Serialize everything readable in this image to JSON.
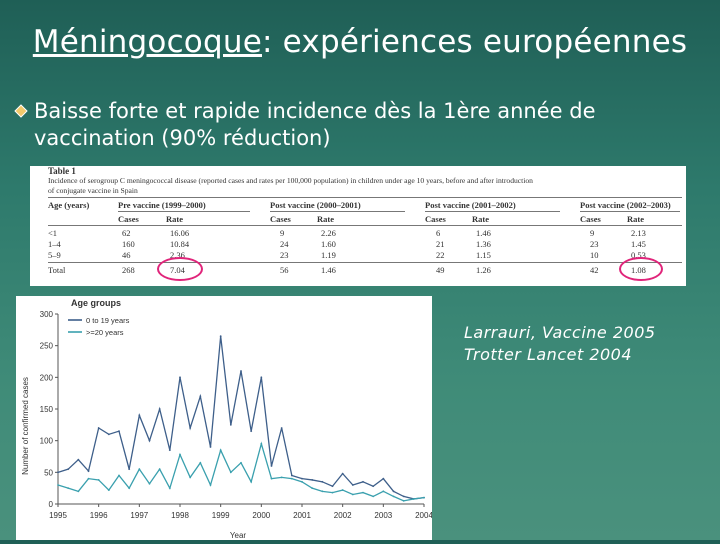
{
  "slide": {
    "title_underlined": "Méningocoque",
    "title_rest": ": expériences européennes",
    "bullet_text": "Baisse forte et rapide incidence dès la 1ère année de vaccination (90% réduction)",
    "bullet_icon": "diamond-bullet-icon",
    "refs": [
      "Larrauri, Vaccine 2005",
      "Trotter Lancet 2004"
    ],
    "colors": {
      "background": "#2e7a6c",
      "highlight_circle": "#e0247a",
      "series_0_19": "#3e5f8a",
      "series_20plus": "#3aa0ae"
    }
  },
  "table": {
    "caption_1": "Table 1",
    "caption_2": "Incidence of serogroup C meningococcal disease (reported cases and rates per 100,000 population) in children under age 10 years, before and after introduction",
    "caption_3": "of conjugate vaccine in Spain",
    "headers": [
      "Age (years)",
      "Pre vaccine (1999–2000)",
      "Post vaccine (2000–2001)",
      "Post vaccine (2001–2002)",
      "Post vaccine (2002–2003)"
    ],
    "subheaders": [
      "Cases",
      "Rate"
    ],
    "rows": [
      [
        "<1",
        "62",
        "16.06",
        "9",
        "2.26",
        "6",
        "1.46",
        "9",
        "2.13"
      ],
      [
        "1–4",
        "160",
        "10.84",
        "24",
        "1.60",
        "21",
        "1.36",
        "23",
        "1.45"
      ],
      [
        "5–9",
        "46",
        "2.36",
        "23",
        "1.19",
        "22",
        "1.15",
        "10",
        "0.53"
      ],
      [
        "Total",
        "268",
        "7.04",
        "56",
        "1.46",
        "49",
        "1.26",
        "42",
        "1.08"
      ]
    ]
  },
  "chart_data": {
    "type": "line",
    "title": "Age groups",
    "xlabel": "Year",
    "ylabel": "Number of confirmed cases",
    "ylim": [
      0,
      300
    ],
    "yticks": [
      "0",
      "50",
      "100",
      "150",
      "200",
      "250",
      "300"
    ],
    "xticks": [
      "1995",
      "1996",
      "1997",
      "1998",
      "1999",
      "2000",
      "2001",
      "2002",
      "2003",
      "2004"
    ],
    "xlim": [
      1995,
      2004
    ],
    "legend_position": "top-left",
    "series": [
      {
        "name": "0 to 19 years",
        "x": [
          1995.0,
          1995.25,
          1995.5,
          1995.75,
          1996.0,
          1996.25,
          1996.5,
          1996.75,
          1997.0,
          1997.25,
          1997.5,
          1997.75,
          1998.0,
          1998.25,
          1998.5,
          1998.75,
          1999.0,
          1999.25,
          1999.5,
          1999.75,
          2000.0,
          2000.25,
          2000.5,
          2000.75,
          2001.0,
          2001.25,
          2001.5,
          2001.75,
          2002.0,
          2002.25,
          2002.5,
          2002.75,
          2003.0,
          2003.25,
          2003.5,
          2003.75,
          2004.0
        ],
        "values": [
          50,
          55,
          70,
          52,
          120,
          110,
          115,
          55,
          140,
          100,
          150,
          85,
          200,
          120,
          170,
          90,
          265,
          125,
          210,
          115,
          200,
          60,
          120,
          45,
          40,
          38,
          35,
          28,
          48,
          30,
          35,
          28,
          40,
          20,
          12,
          8,
          10
        ]
      },
      {
        "name": ">=20 years",
        "x": [
          1995.0,
          1995.25,
          1995.5,
          1995.75,
          1996.0,
          1996.25,
          1996.5,
          1996.75,
          1997.0,
          1997.25,
          1997.5,
          1997.75,
          1998.0,
          1998.25,
          1998.5,
          1998.75,
          1999.0,
          1999.25,
          1999.5,
          1999.75,
          2000.0,
          2000.25,
          2000.5,
          2000.75,
          2001.0,
          2001.25,
          2001.5,
          2001.75,
          2002.0,
          2002.25,
          2002.5,
          2002.75,
          2003.0,
          2003.25,
          2003.5,
          2003.75,
          2004.0
        ],
        "values": [
          30,
          25,
          20,
          40,
          38,
          22,
          45,
          25,
          55,
          32,
          55,
          25,
          78,
          42,
          65,
          30,
          85,
          50,
          65,
          35,
          95,
          40,
          42,
          40,
          35,
          25,
          20,
          18,
          22,
          15,
          18,
          12,
          20,
          12,
          5,
          8,
          10
        ]
      }
    ]
  }
}
